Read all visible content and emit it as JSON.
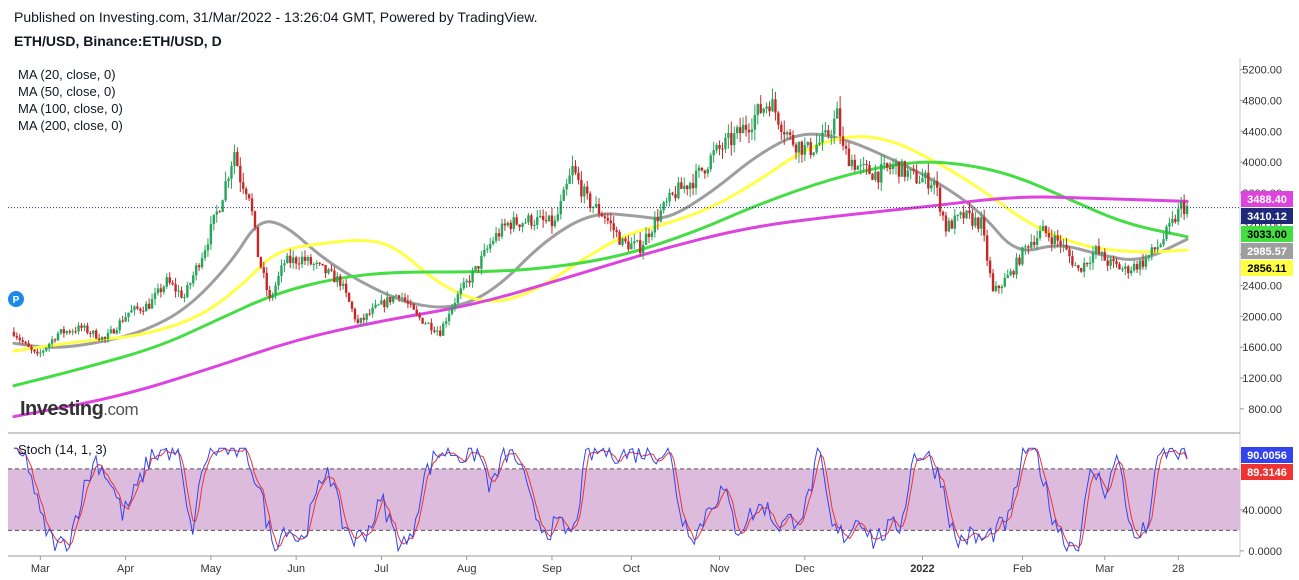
{
  "header": {
    "published": "Published on Investing.com, 31/Mar/2022 - 13:26:04 GMT, Powered by TradingView.",
    "symbol": "ETH/USD, Binance:ETH/USD, D"
  },
  "legend": {
    "ma": [
      "MA (20, close, 0)",
      "MA (50, close, 0)",
      "MA (100, close, 0)",
      "MA (200, close, 0)"
    ],
    "stoch": "Stoch (14, 1, 3)"
  },
  "logo": {
    "main": "Investing",
    "suffix": ".com",
    "marker": "P"
  },
  "colors": {
    "ma20": "#9e9e9e",
    "ma50": "#ffff44",
    "ma100": "#44dd44",
    "ma200": "#dd44dd",
    "up": "#26a65b",
    "down": "#c62828",
    "stoch_k": "#3344ee",
    "stoch_d": "#ee3333",
    "stoch_band": "#dcbbdd",
    "price_line": "#1e2a78"
  },
  "chart_data": [
    {
      "type": "candlestick",
      "title": "ETH/USD, Binance:ETH/USD, D",
      "x_ticks": [
        "Mar",
        "Apr",
        "May",
        "Jun",
        "Jul",
        "Aug",
        "Sep",
        "Oct",
        "Nov",
        "Dec",
        "2022",
        "Feb",
        "Mar",
        "28"
      ],
      "y_ticks": [
        800,
        1200,
        1600,
        2000,
        2400,
        2800,
        3200,
        3600,
        4000,
        4400,
        4800,
        5200
      ],
      "y_tick_labels": [
        "800.00",
        "1200.00",
        "1600.00",
        "2000.00",
        "2400.00",
        "2800.00",
        "3200.00",
        "3600.00",
        "4000.00",
        "4400.00",
        "4800.00",
        "5200.00"
      ],
      "ylim": [
        500,
        5350
      ],
      "close_path": [
        [
          "2021-02-25",
          1800
        ],
        [
          "2021-03-01",
          1620
        ],
        [
          "2021-03-05",
          1480
        ],
        [
          "2021-03-12",
          1780
        ],
        [
          "2021-03-20",
          1850
        ],
        [
          "2021-03-28",
          1700
        ],
        [
          "2021-04-05",
          2050
        ],
        [
          "2021-04-12",
          2150
        ],
        [
          "2021-04-18",
          2450
        ],
        [
          "2021-04-24",
          2250
        ],
        [
          "2021-05-01",
          2900
        ],
        [
          "2021-05-06",
          3450
        ],
        [
          "2021-05-11",
          4150
        ],
        [
          "2021-05-13",
          3800
        ],
        [
          "2021-05-16",
          3600
        ],
        [
          "2021-05-19",
          2800
        ],
        [
          "2021-05-23",
          2200
        ],
        [
          "2021-05-28",
          2700
        ],
        [
          "2021-06-03",
          2750
        ],
        [
          "2021-06-10",
          2600
        ],
        [
          "2021-06-16",
          2450
        ],
        [
          "2021-06-22",
          1900
        ],
        [
          "2021-06-28",
          2100
        ],
        [
          "2021-07-06",
          2300
        ],
        [
          "2021-07-12",
          2000
        ],
        [
          "2021-07-20",
          1800
        ],
        [
          "2021-07-24",
          2150
        ],
        [
          "2021-08-01",
          2600
        ],
        [
          "2021-08-07",
          3000
        ],
        [
          "2021-08-12",
          3200
        ],
        [
          "2021-08-20",
          3250
        ],
        [
          "2021-08-28",
          3200
        ],
        [
          "2021-09-03",
          3900
        ],
        [
          "2021-09-08",
          3500
        ],
        [
          "2021-09-14",
          3300
        ],
        [
          "2021-09-20",
          2950
        ],
        [
          "2021-09-26",
          2900
        ],
        [
          "2021-10-02",
          3300
        ],
        [
          "2021-10-08",
          3600
        ],
        [
          "2021-10-15",
          3800
        ],
        [
          "2021-10-21",
          4100
        ],
        [
          "2021-10-29",
          4350
        ],
        [
          "2021-11-09",
          4800
        ],
        [
          "2021-11-16",
          4300
        ],
        [
          "2021-11-22",
          4150
        ],
        [
          "2021-11-28",
          4300
        ],
        [
          "2021-12-02",
          4600
        ],
        [
          "2021-12-04",
          4150
        ],
        [
          "2021-12-10",
          3900
        ],
        [
          "2021-12-16",
          3850
        ],
        [
          "2021-12-22",
          3950
        ],
        [
          "2021-12-28",
          3800
        ],
        [
          "2022-01-04",
          3750
        ],
        [
          "2022-01-08",
          3150
        ],
        [
          "2022-01-14",
          3300
        ],
        [
          "2022-01-20",
          3200
        ],
        [
          "2022-01-24",
          2300
        ],
        [
          "2022-01-30",
          2550
        ],
        [
          "2022-02-05",
          2950
        ],
        [
          "2022-02-10",
          3100
        ],
        [
          "2022-02-16",
          2950
        ],
        [
          "2022-02-22",
          2600
        ],
        [
          "2022-02-28",
          2850
        ],
        [
          "2022-03-04",
          2700
        ],
        [
          "2022-03-10",
          2600
        ],
        [
          "2022-03-16",
          2700
        ],
        [
          "2022-03-22",
          2950
        ],
        [
          "2022-03-26",
          3200
        ],
        [
          "2022-03-29",
          3420
        ],
        [
          "2022-03-31",
          3410
        ]
      ],
      "series": [
        {
          "name": "MA (20, close, 0)",
          "color_key": "ma20",
          "points": [
            [
              "2021-02-25",
              1650
            ],
            [
              "2021-03-10",
              1580
            ],
            [
              "2021-03-25",
              1650
            ],
            [
              "2021-04-10",
              1800
            ],
            [
              "2021-04-25",
              2100
            ],
            [
              "2021-05-10",
              2700
            ],
            [
              "2021-05-19",
              3250
            ],
            [
              "2021-05-28",
              3200
            ],
            [
              "2021-06-10",
              2750
            ],
            [
              "2021-06-25",
              2400
            ],
            [
              "2021-07-10",
              2150
            ],
            [
              "2021-07-25",
              2100
            ],
            [
              "2021-08-08",
              2350
            ],
            [
              "2021-08-25",
              3000
            ],
            [
              "2021-09-10",
              3350
            ],
            [
              "2021-09-25",
              3300
            ],
            [
              "2021-10-05",
              3250
            ],
            [
              "2021-10-20",
              3600
            ],
            [
              "2021-11-05",
              4100
            ],
            [
              "2021-11-20",
              4400
            ],
            [
              "2021-12-05",
              4300
            ],
            [
              "2021-12-20",
              4050
            ],
            [
              "2022-01-05",
              3750
            ],
            [
              "2022-01-20",
              3350
            ],
            [
              "2022-02-01",
              2800
            ],
            [
              "2022-02-15",
              2950
            ],
            [
              "2022-03-01",
              2800
            ],
            [
              "2022-03-15",
              2700
            ],
            [
              "2022-03-31",
              3000
            ]
          ]
        },
        {
          "name": "MA (50, close, 0)",
          "color_key": "ma50",
          "points": [
            [
              "2021-02-25",
              1550
            ],
            [
              "2021-03-20",
              1680
            ],
            [
              "2021-04-10",
              1750
            ],
            [
              "2021-04-30",
              2000
            ],
            [
              "2021-05-15",
              2450
            ],
            [
              "2021-05-25",
              2850
            ],
            [
              "2021-06-10",
              2950
            ],
            [
              "2021-06-25",
              3000
            ],
            [
              "2021-07-05",
              2900
            ],
            [
              "2021-07-20",
              2400
            ],
            [
              "2021-08-05",
              2150
            ],
            [
              "2021-08-20",
              2300
            ],
            [
              "2021-09-05",
              2700
            ],
            [
              "2021-09-20",
              3050
            ],
            [
              "2021-10-05",
              3200
            ],
            [
              "2021-10-20",
              3400
            ],
            [
              "2021-11-05",
              3750
            ],
            [
              "2021-11-20",
              4150
            ],
            [
              "2021-12-05",
              4350
            ],
            [
              "2021-12-20",
              4300
            ],
            [
              "2022-01-05",
              4000
            ],
            [
              "2022-01-20",
              3650
            ],
            [
              "2022-02-05",
              3200
            ],
            [
              "2022-02-20",
              2950
            ],
            [
              "2022-03-05",
              2850
            ],
            [
              "2022-03-20",
              2830
            ],
            [
              "2022-03-31",
              2860
            ]
          ]
        },
        {
          "name": "MA (100, close, 0)",
          "color_key": "ma100",
          "points": [
            [
              "2021-02-25",
              1100
            ],
            [
              "2021-03-20",
              1320
            ],
            [
              "2021-04-15",
              1600
            ],
            [
              "2021-05-05",
              1950
            ],
            [
              "2021-05-25",
              2300
            ],
            [
              "2021-06-15",
              2500
            ],
            [
              "2021-07-05",
              2580
            ],
            [
              "2021-08-01",
              2570
            ],
            [
              "2021-08-25",
              2620
            ],
            [
              "2021-09-20",
              2780
            ],
            [
              "2021-10-15",
              3100
            ],
            [
              "2021-11-05",
              3450
            ],
            [
              "2021-12-01",
              3800
            ],
            [
              "2021-12-25",
              4000
            ],
            [
              "2022-01-10",
              4000
            ],
            [
              "2022-01-30",
              3850
            ],
            [
              "2022-02-20",
              3500
            ],
            [
              "2022-03-10",
              3200
            ],
            [
              "2022-03-31",
              3033
            ]
          ]
        },
        {
          "name": "MA (200, close, 0)",
          "color_key": "ma200",
          "points": [
            [
              "2021-02-25",
              700
            ],
            [
              "2021-04-01",
              950
            ],
            [
              "2021-05-01",
              1300
            ],
            [
              "2021-06-01",
              1700
            ],
            [
              "2021-07-01",
              1950
            ],
            [
              "2021-08-01",
              2150
            ],
            [
              "2021-09-01",
              2500
            ],
            [
              "2021-10-01",
              2850
            ],
            [
              "2021-11-01",
              3150
            ],
            [
              "2021-12-01",
              3300
            ],
            [
              "2022-01-01",
              3420
            ],
            [
              "2022-02-01",
              3560
            ],
            [
              "2022-03-01",
              3530
            ],
            [
              "2022-03-31",
              3490
            ]
          ]
        }
      ],
      "price_labels": [
        {
          "text": "3488.40",
          "value": 3488.4,
          "color_key": "ma200"
        },
        {
          "text": "3410.12",
          "value": 3410.12,
          "color_key": "price_line"
        },
        {
          "text": "3033.00",
          "value": 3033.0,
          "color_key": "ma100"
        },
        {
          "text": "2985.57",
          "value": 2985.57,
          "color_key": "ma20"
        },
        {
          "text": "2856.11",
          "value": 2856.11,
          "color_key": "ma50"
        }
      ],
      "last_price": 3410.12
    },
    {
      "type": "line",
      "title": "Stoch (14, 1, 3)",
      "y_ticks": [
        0,
        40
      ],
      "y_tick_labels": [
        "0.0000",
        "40.0000"
      ],
      "ylim": [
        -5,
        112
      ],
      "bands": [
        20,
        80
      ],
      "series": [
        {
          "name": "%K",
          "color_key": "stoch_k"
        },
        {
          "name": "%D",
          "color_key": "stoch_d"
        }
      ],
      "k_anchor_values": [
        95,
        88,
        30,
        5,
        8,
        55,
        90,
        70,
        35,
        60,
        92,
        98,
        96,
        15,
        90,
        100,
        98,
        99,
        60,
        5,
        25,
        8,
        45,
        85,
        30,
        10,
        22,
        50,
        12,
        6,
        70,
        95,
        98,
        92,
        97,
        60,
        96,
        88,
        40,
        20,
        25,
        15,
        94,
        98,
        96,
        94,
        97,
        95,
        98,
        30,
        15,
        45,
        60,
        20,
        35,
        45,
        25,
        30,
        40,
        95,
        20,
        15,
        35,
        10,
        20,
        25,
        95,
        92,
        70,
        8,
        15,
        10,
        20,
        30,
        100,
        95,
        40,
        10,
        5,
        80,
        60,
        92,
        10,
        20,
        95,
        98,
        92
      ],
      "price_labels": [
        {
          "text": "90.0056",
          "value": 90.0056,
          "color_key": "stoch_k"
        },
        {
          "text": "89.3146",
          "value": 89.3146,
          "color_key": "stoch_d"
        }
      ]
    }
  ]
}
